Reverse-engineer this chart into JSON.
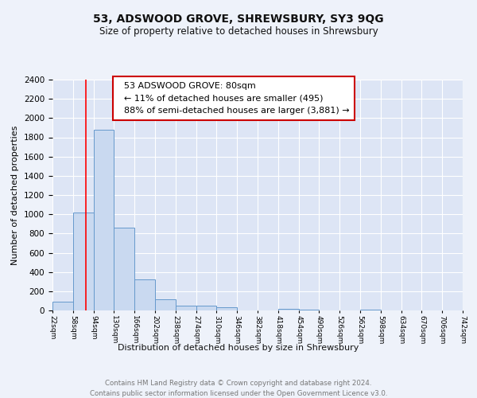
{
  "title": "53, ADSWOOD GROVE, SHREWSBURY, SY3 9QG",
  "subtitle": "Size of property relative to detached houses in Shrewsbury",
  "xlabel": "Distribution of detached houses by size in Shrewsbury",
  "ylabel": "Number of detached properties",
  "bar_edges": [
    22,
    58,
    94,
    130,
    166,
    202,
    238,
    274,
    310,
    346,
    382,
    418,
    454,
    490,
    526,
    562,
    598,
    634,
    670,
    706,
    742
  ],
  "bar_heights": [
    90,
    1020,
    1880,
    860,
    320,
    115,
    50,
    50,
    30,
    0,
    0,
    15,
    10,
    0,
    0,
    10,
    0,
    0,
    0,
    0
  ],
  "bar_color": "#c9d9f0",
  "bar_edge_color": "#6699cc",
  "red_line_x": 80,
  "ylim": [
    0,
    2400
  ],
  "yticks": [
    0,
    200,
    400,
    600,
    800,
    1000,
    1200,
    1400,
    1600,
    1800,
    2000,
    2200,
    2400
  ],
  "annotation_title": "53 ADSWOOD GROVE: 80sqm",
  "annotation_line1": "← 11% of detached houses are smaller (495)",
  "annotation_line2": "88% of semi-detached houses are larger (3,881) →",
  "footer1": "Contains HM Land Registry data © Crown copyright and database right 2024.",
  "footer2": "Contains public sector information licensed under the Open Government Licence v3.0.",
  "bg_color": "#eef2fa",
  "grid_color": "#ffffff",
  "axis_bg_color": "#dde5f5"
}
